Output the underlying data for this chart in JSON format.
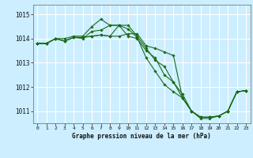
{
  "title": "Graphe pression niveau de la mer (hPa)",
  "background_color": "#cceeff",
  "grid_color": "#ffffff",
  "line_color": "#1a6b1a",
  "marker_color": "#1a6b1a",
  "ylim": [
    1010.5,
    1015.4
  ],
  "xlim": [
    -0.5,
    23.5
  ],
  "yticks": [
    1011,
    1012,
    1013,
    1014,
    1015
  ],
  "xticks": [
    0,
    1,
    2,
    3,
    4,
    5,
    6,
    7,
    8,
    9,
    10,
    11,
    12,
    13,
    14,
    15,
    16,
    17,
    18,
    19,
    20,
    21,
    22,
    23
  ],
  "series": [
    [
      1013.8,
      1013.8,
      1014.0,
      1014.0,
      1014.1,
      1014.1,
      1014.5,
      1014.8,
      1014.55,
      1014.55,
      1014.1,
      1014.0,
      1013.5,
      1013.2,
      1012.5,
      1012.2,
      1011.7,
      1011.0,
      1010.7,
      1010.7,
      1010.8,
      1011.0,
      1011.8,
      1011.85
    ],
    [
      1013.8,
      1013.8,
      1014.0,
      1013.9,
      1014.05,
      1014.0,
      1014.3,
      1014.35,
      1014.55,
      1014.55,
      1014.4,
      1014.05,
      1013.2,
      1012.65,
      1012.1,
      1011.8,
      1011.55,
      1011.0,
      1010.75,
      1010.75,
      1010.8,
      1011.0,
      1011.8,
      1011.85
    ],
    [
      1013.8,
      1013.8,
      1014.0,
      1013.9,
      1014.05,
      1014.05,
      1014.1,
      1014.15,
      1014.1,
      1014.1,
      1014.2,
      1014.2,
      1013.7,
      1013.6,
      1013.45,
      1013.3,
      1011.55,
      1011.0,
      1010.75,
      1010.75,
      1010.8,
      1011.0,
      1011.8,
      1011.85
    ],
    [
      1013.8,
      1013.8,
      1014.0,
      1013.9,
      1014.05,
      1014.05,
      1014.1,
      1014.15,
      1014.1,
      1014.55,
      1014.55,
      1014.1,
      1013.6,
      1013.1,
      1012.85,
      1012.2,
      1011.55,
      1011.0,
      1010.75,
      1010.75,
      1010.8,
      1011.0,
      1011.8,
      1011.85
    ]
  ]
}
